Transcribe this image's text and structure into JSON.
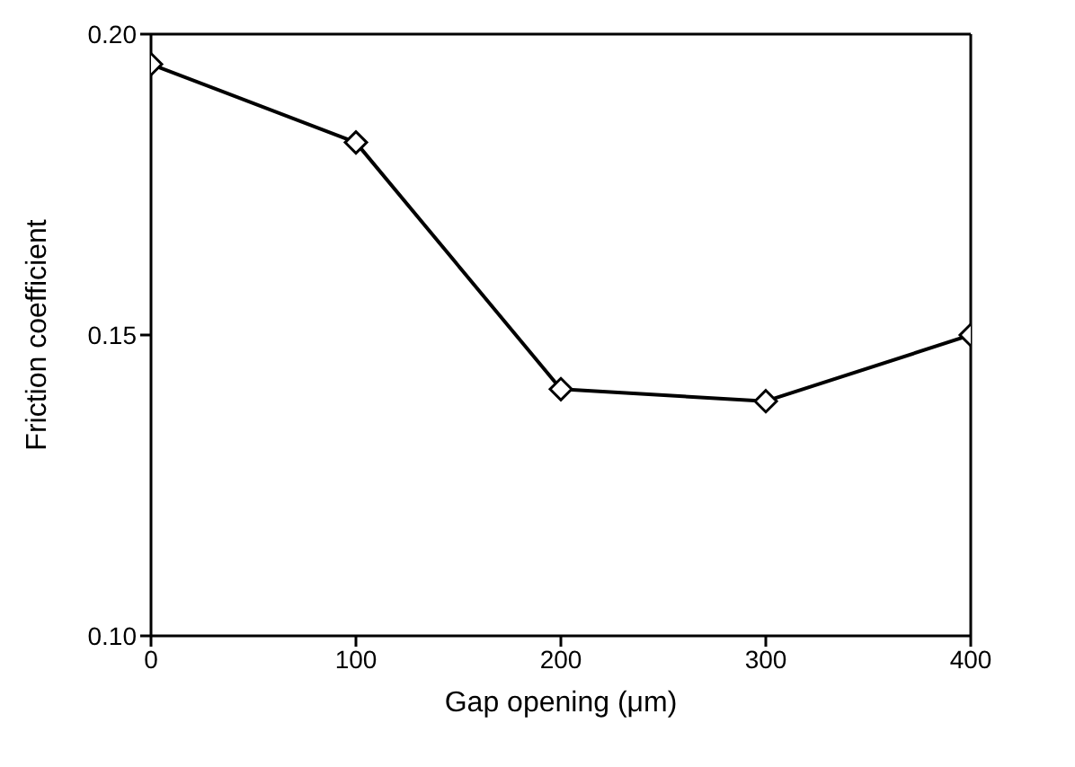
{
  "chart_data": {
    "type": "line",
    "xlabel": "Gap opening (μm)",
    "ylabel": "Friction coefficient",
    "x": [
      0,
      100,
      200,
      300,
      400
    ],
    "series": [
      {
        "color": "#000000",
        "values": [
          0.195,
          0.182,
          0.141,
          0.139,
          0.15
        ]
      }
    ],
    "xlim": [
      0,
      400
    ],
    "xticks": [
      0,
      100,
      200,
      300,
      400
    ],
    "ylim": [
      0.1,
      0.2
    ],
    "yticks": [
      {
        "value": 0.1,
        "label": "0.10"
      },
      {
        "value": 0.15,
        "label": "0.15"
      },
      {
        "value": 0.2,
        "label": "0.20"
      }
    ],
    "grid": false,
    "marker": "diamond",
    "line_style": "solid"
  }
}
